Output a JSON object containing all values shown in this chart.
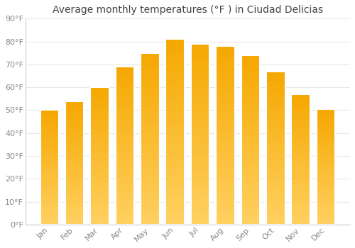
{
  "title": "Average monthly temperatures (°F ) in Ciudad Delicias",
  "months": [
    "Jan",
    "Feb",
    "Mar",
    "Apr",
    "May",
    "Jun",
    "Jul",
    "Aug",
    "Sep",
    "Oct",
    "Nov",
    "Dec"
  ],
  "values": [
    50,
    54,
    60,
    69,
    75,
    81,
    79,
    78,
    74,
    67,
    57,
    50.5
  ],
  "bar_color_top": "#F5A800",
  "bar_color_bottom": "#FFD060",
  "bar_edge_color": "#FFFFFF",
  "background_color": "#FFFFFF",
  "plot_bg_color": "#FFFFFF",
  "ylim": [
    0,
    90
  ],
  "yticks": [
    0,
    10,
    20,
    30,
    40,
    50,
    60,
    70,
    80,
    90
  ],
  "ytick_labels": [
    "0°F",
    "10°F",
    "20°F",
    "30°F",
    "40°F",
    "50°F",
    "60°F",
    "70°F",
    "80°F",
    "90°F"
  ],
  "grid_color": "#E8E8E8",
  "tick_label_color": "#888888",
  "title_color": "#444444",
  "title_fontsize": 10,
  "tick_fontsize": 8,
  "bar_width": 0.75
}
